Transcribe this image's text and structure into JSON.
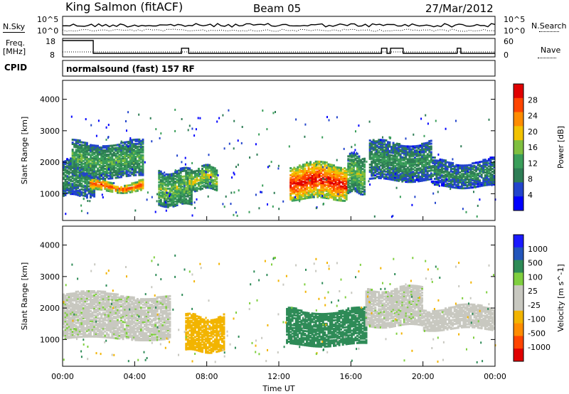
{
  "header": {
    "station": "King Salmon (fitACF)",
    "beam": "Beam 05",
    "date": "27/Mar/2012"
  },
  "noise_panel": {
    "left_label": "N.Sky",
    "right_label": "N.Search",
    "left_ticks": [
      "10^5",
      "10^0"
    ],
    "right_ticks": [
      "10^5",
      "10^0"
    ]
  },
  "freq_panel": {
    "left_label_line1": "Freq.",
    "left_label_line2": "[MHz]",
    "right_label": "Nave",
    "left_ticks": [
      "18",
      "8"
    ],
    "right_ticks": [
      "60",
      "0"
    ]
  },
  "cpid_panel": {
    "label": "CPID",
    "text": "normalsound (fast) 157 RF"
  },
  "colors": {
    "power_scale": [
      "#0000ff",
      "#2244cc",
      "#2e7d55",
      "#3a9e5a",
      "#7fbf3f",
      "#f2c200",
      "#ff8c00",
      "#ff4500",
      "#e00000"
    ],
    "velocity_scale": [
      "#e00000",
      "#ff4500",
      "#ff8c00",
      "#f2b400",
      "#c8c8c0",
      "#c8c8c0",
      "#7fcf3f",
      "#2e8b57",
      "#2255bb",
      "#1a1aff"
    ]
  },
  "chart_data": [
    {
      "type": "heatmap",
      "panel": "power",
      "ylabel": "Slant Range [km]",
      "yticks": [
        1000,
        2000,
        3000,
        4000
      ],
      "ylim": [
        150,
        4600
      ],
      "colorbar_label": "Power [dB]",
      "colorbar_ticks": [
        4,
        8,
        12,
        16,
        20,
        24,
        28
      ],
      "colorbar_range": [
        0,
        32
      ],
      "echo_regions": [
        {
          "t0": 0.0,
          "t1": 1.8,
          "r0": 900,
          "r1": 2000,
          "level": 10
        },
        {
          "t0": 1.5,
          "t1": 4.5,
          "r0": 1050,
          "r1": 1350,
          "level": 24
        },
        {
          "t0": 0.5,
          "t1": 4.5,
          "r0": 1500,
          "r1": 2600,
          "level": 12
        },
        {
          "t0": 5.3,
          "t1": 7.2,
          "r0": 600,
          "r1": 1700,
          "level": 14
        },
        {
          "t0": 7.0,
          "t1": 8.6,
          "r0": 1100,
          "r1": 1800,
          "level": 16
        },
        {
          "t0": 12.6,
          "t1": 15.8,
          "r0": 800,
          "r1": 1900,
          "level": 26
        },
        {
          "t0": 15.8,
          "t1": 16.8,
          "r0": 1000,
          "r1": 2200,
          "level": 14
        },
        {
          "t0": 17.0,
          "t1": 20.5,
          "r0": 1400,
          "r1": 2600,
          "level": 10
        },
        {
          "t0": 20.5,
          "t1": 24.0,
          "r0": 1200,
          "r1": 2000,
          "level": 9
        }
      ]
    },
    {
      "type": "heatmap",
      "panel": "velocity",
      "ylabel": "Slant Range [km]",
      "xlabel": "Time UT",
      "xticks": [
        "00:00",
        "04:00",
        "08:00",
        "12:00",
        "16:00",
        "20:00",
        "00:00"
      ],
      "xlim": [
        0,
        24
      ],
      "yticks": [
        1000,
        2000,
        3000,
        4000
      ],
      "ylim": [
        150,
        4600
      ],
      "colorbar_label": "Velocity [m s^-1]",
      "colorbar_ticks": [
        "1000",
        "500",
        "100",
        "25",
        "-25",
        "-100",
        "-500",
        "-1000"
      ],
      "echo_regions": [
        {
          "t0": 0.0,
          "t1": 6.0,
          "r0": 1000,
          "r1": 2400,
          "velocity": 0
        },
        {
          "t0": 6.8,
          "t1": 9.0,
          "r0": 600,
          "r1": 1700,
          "velocity": -300
        },
        {
          "t0": 12.4,
          "t1": 16.9,
          "r0": 800,
          "r1": 1900,
          "velocity": 200
        },
        {
          "t0": 16.8,
          "t1": 20.0,
          "r0": 1400,
          "r1": 2600,
          "velocity": 0
        },
        {
          "t0": 20.0,
          "t1": 24.0,
          "r0": 1300,
          "r1": 2000,
          "velocity": -40
        }
      ]
    }
  ]
}
